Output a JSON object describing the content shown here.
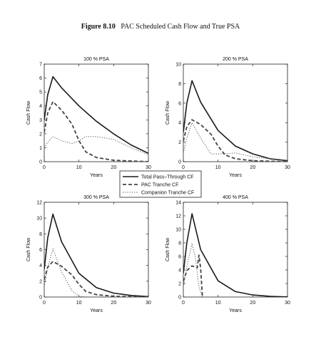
{
  "figure": {
    "number": "Figure 8.10",
    "caption": "PAC Scheduled Cash Flow and True PSA"
  },
  "legend": {
    "placement": "center",
    "entries": [
      {
        "label": "Total Pass–Through CF",
        "style": "solid"
      },
      {
        "label": "PAC Tranche CF",
        "style": "dashed"
      },
      {
        "label": "Companion Tranche CF",
        "style": "dotted"
      }
    ]
  },
  "colors": {
    "lines": "#1a1a1a",
    "companion": "#555555",
    "background": "#ffffff"
  },
  "chart_data": [
    {
      "type": "line",
      "title": "100 % PSA",
      "xlabel": "Years",
      "ylabel": "Cash Flow",
      "xlim": [
        0,
        30
      ],
      "ylim": [
        0,
        7
      ],
      "xticks": [
        0,
        10,
        20,
        30
      ],
      "yticks": [
        0,
        1,
        2,
        3,
        4,
        5,
        6,
        7
      ],
      "series": [
        {
          "name": "Total Pass–Through CF",
          "x": [
            0,
            1,
            2.5,
            5,
            10,
            15,
            20,
            25,
            30
          ],
          "y": [
            3.0,
            4.8,
            6.1,
            5.3,
            4.0,
            2.9,
            2.0,
            1.2,
            0.6
          ]
        },
        {
          "name": "PAC Tranche CF",
          "x": [
            0,
            1,
            2.5,
            5,
            8,
            10,
            12,
            15,
            20,
            30
          ],
          "y": [
            2.1,
            3.5,
            4.3,
            3.7,
            2.7,
            1.5,
            0.7,
            0.3,
            0.1,
            0.0
          ]
        },
        {
          "name": "Companion Tranche CF",
          "x": [
            0,
            1,
            2.5,
            5,
            8,
            10,
            12,
            15,
            20,
            25,
            30
          ],
          "y": [
            1.0,
            1.4,
            1.8,
            1.5,
            1.3,
            1.5,
            1.8,
            1.8,
            1.6,
            1.0,
            0.5
          ]
        }
      ]
    },
    {
      "type": "line",
      "title": "200 % PSA",
      "xlabel": "Years",
      "ylabel": "Cash Flow",
      "xlim": [
        0,
        30
      ],
      "ylim": [
        0,
        10
      ],
      "xticks": [
        0,
        10,
        20,
        30
      ],
      "yticks": [
        0,
        2,
        4,
        6,
        8,
        10
      ],
      "series": [
        {
          "name": "Total Pass–Through CF",
          "x": [
            0,
            1,
            2.5,
            5,
            10,
            15,
            20,
            25,
            30
          ],
          "y": [
            3.0,
            6.0,
            8.3,
            6.1,
            3.2,
            1.6,
            0.8,
            0.3,
            0.1
          ]
        },
        {
          "name": "PAC Tranche CF",
          "x": [
            0,
            1,
            2.5,
            5,
            8,
            10,
            12,
            15,
            20,
            30
          ],
          "y": [
            2.1,
            3.6,
            4.3,
            3.8,
            2.8,
            1.6,
            0.7,
            0.3,
            0.1,
            0.0
          ]
        },
        {
          "name": "Companion Tranche CF",
          "x": [
            0,
            1,
            2.5,
            5,
            8,
            10,
            12,
            15,
            20,
            30
          ],
          "y": [
            0.9,
            2.4,
            4.0,
            2.4,
            0.8,
            0.8,
            0.8,
            0.9,
            0.5,
            0.1
          ]
        }
      ]
    },
    {
      "type": "line",
      "title": "300 % PSA",
      "xlabel": "Years",
      "ylabel": "Cash Flow",
      "xlim": [
        0,
        30
      ],
      "ylim": [
        0,
        12
      ],
      "xticks": [
        0,
        10,
        20,
        30
      ],
      "yticks": [
        0,
        2,
        4,
        6,
        8,
        10,
        12
      ],
      "series": [
        {
          "name": "Total Pass–Through CF",
          "x": [
            0,
            1,
            2.5,
            5,
            10,
            15,
            20,
            25,
            30
          ],
          "y": [
            3.5,
            7.5,
            10.5,
            7.0,
            3.0,
            1.2,
            0.5,
            0.2,
            0.05
          ]
        },
        {
          "name": "PAC Tranche CF",
          "x": [
            0,
            1,
            2.5,
            5,
            8,
            10,
            12,
            15,
            20,
            30
          ],
          "y": [
            2.2,
            3.8,
            4.5,
            3.9,
            2.8,
            1.6,
            0.7,
            0.3,
            0.1,
            0.0
          ]
        },
        {
          "name": "Companion Tranche CF",
          "x": [
            0,
            1,
            2.5,
            5,
            8,
            10,
            12
          ],
          "y": [
            1.3,
            3.7,
            6.1,
            3.2,
            0.8,
            0.1,
            0.0
          ]
        }
      ]
    },
    {
      "type": "line",
      "title": "400 % PSA",
      "xlabel": "Years",
      "ylabel": "Cash Flow",
      "xlim": [
        0,
        30
      ],
      "ylim": [
        0,
        14
      ],
      "xticks": [
        0,
        10,
        20,
        30
      ],
      "yticks": [
        0,
        2,
        4,
        6,
        8,
        10,
        12,
        14
      ],
      "series": [
        {
          "name": "Total Pass–Through CF",
          "x": [
            0,
            1,
            2.5,
            5,
            10,
            15,
            20,
            25,
            30
          ],
          "y": [
            3.5,
            8.0,
            12.3,
            7.0,
            2.4,
            0.8,
            0.3,
            0.1,
            0.02
          ]
        },
        {
          "name": "PAC Tranche CF",
          "x": [
            0,
            1,
            2.5,
            4,
            4.5,
            5,
            5.5
          ],
          "y": [
            2.3,
            3.9,
            4.6,
            4.3,
            6.2,
            4.2,
            0.0
          ]
        },
        {
          "name": "Companion Tranche CF",
          "x": [
            0,
            1,
            2.5,
            3.5,
            4.5,
            5.5
          ],
          "y": [
            1.5,
            4.5,
            7.9,
            5.8,
            1.5,
            0.0
          ]
        }
      ]
    }
  ]
}
